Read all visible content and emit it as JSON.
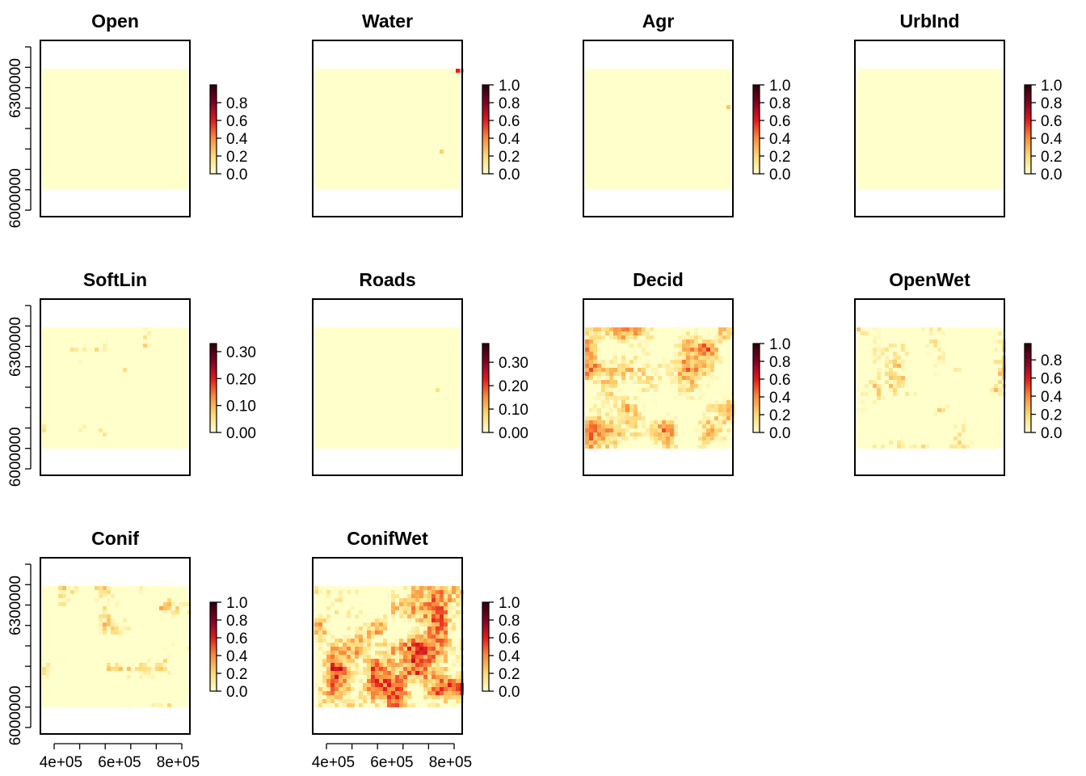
{
  "chart_data": {
    "type": "heatmap",
    "layout": {
      "rows": 3,
      "cols": 4
    },
    "palette": [
      "#ffffcc",
      "#fed976",
      "#fd8d3c",
      "#e31a1c",
      "#800026",
      "#2d0007"
    ],
    "x_axis": {
      "ticks": [
        400000,
        600000,
        800000
      ],
      "tick_labels": [
        "4e+05",
        "6e+05",
        "8e+05"
      ],
      "range": [
        330000,
        840000
      ]
    },
    "y_axis": {
      "ticks": [
        6000000,
        6300000
      ],
      "tick_labels": [
        "6000000",
        "6300000"
      ],
      "range": [
        5950000,
        6430000
      ]
    },
    "panels": [
      {
        "title": "Open",
        "legend_ticks": [
          "0.0",
          "0.2",
          "0.4",
          "0.6",
          "0.8"
        ],
        "legend_max": 1.0,
        "density": 0.06,
        "dark": 0.25
      },
      {
        "title": "Water",
        "legend_ticks": [
          "0.0",
          "0.2",
          "0.4",
          "0.6",
          "0.8",
          "1.0"
        ],
        "legend_max": 1.0,
        "density": 0.08,
        "dark": 0.7
      },
      {
        "title": "Agr",
        "legend_ticks": [
          "0.0",
          "0.2",
          "0.4",
          "0.6",
          "0.8",
          "1.0"
        ],
        "legend_max": 1.0,
        "density": 0.02,
        "dark": 0.6
      },
      {
        "title": "UrbInd",
        "legend_ticks": [
          "0.0",
          "0.2",
          "0.4",
          "0.6",
          "0.8",
          "1.0"
        ],
        "legend_max": 1.0,
        "density": 0.03,
        "dark": 0.5
      },
      {
        "title": "SoftLin",
        "legend_ticks": [
          "0.00",
          "0.10",
          "0.20",
          "0.30"
        ],
        "legend_max": 0.33,
        "density": 0.12,
        "dark": 0.1
      },
      {
        "title": "Roads",
        "legend_ticks": [
          "0.00",
          "0.10",
          "0.20",
          "0.30"
        ],
        "legend_max": 0.38,
        "density": 0.07,
        "dark": 0.1
      },
      {
        "title": "Decid",
        "legend_ticks": [
          "0.0",
          "0.2",
          "0.4",
          "0.6",
          "0.8",
          "1.0"
        ],
        "legend_max": 1.0,
        "density": 0.55,
        "dark": 0.35
      },
      {
        "title": "OpenWet",
        "legend_ticks": [
          "0.0",
          "0.2",
          "0.4",
          "0.6",
          "0.8"
        ],
        "legend_max": 0.98,
        "density": 0.25,
        "dark": 0.15
      },
      {
        "title": "Conif",
        "legend_ticks": [
          "0.0",
          "0.2",
          "0.4",
          "0.6",
          "0.8",
          "1.0"
        ],
        "legend_max": 1.0,
        "density": 0.3,
        "dark": 0.2
      },
      {
        "title": "ConifWet",
        "legend_ticks": [
          "0.0",
          "0.2",
          "0.4",
          "0.6",
          "0.8",
          "1.0"
        ],
        "legend_max": 1.0,
        "density": 0.6,
        "dark": 0.5
      }
    ]
  }
}
